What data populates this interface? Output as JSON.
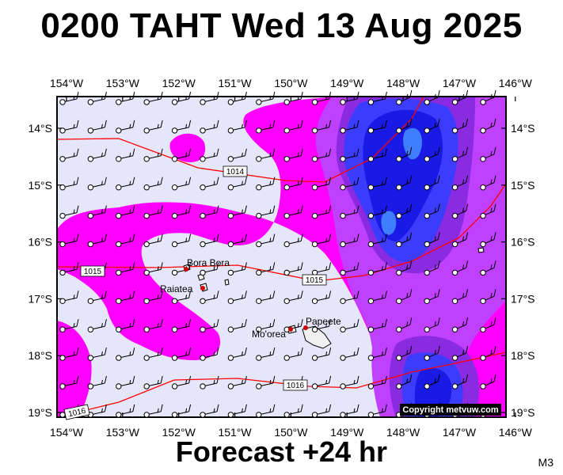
{
  "title": "0200 TAHT Wed 13 Aug 2025",
  "footer": "Forecast +24 hr",
  "code": "M3",
  "copyright": "Copyright metvuw.com",
  "colors": {
    "background": "#e6e6fa",
    "magenta": "#ff00ff",
    "violet": "#c040ff",
    "purple": "#8a2be2",
    "blue": "#3c3cff",
    "deepblue": "#0000cc",
    "isobar": "#ff0000",
    "land": "#f0f0f0"
  },
  "lon_ticks": [
    "154°W",
    "153°W",
    "152°W",
    "151°W",
    "150°W",
    "149°W",
    "148°W",
    "147°W",
    "146°W"
  ],
  "lat_ticks": [
    "14°S",
    "15°S",
    "16°S",
    "17°S",
    "18°S",
    "19°S"
  ],
  "isobars": [
    {
      "label": "1014"
    },
    {
      "label": "1015"
    },
    {
      "label": "1015"
    },
    {
      "label": "1016"
    },
    {
      "label": "1016"
    }
  ],
  "places": [
    {
      "name": "Bora Bora",
      "lon": -151.75,
      "lat": -16.5
    },
    {
      "name": "Raiatea",
      "lon": -151.45,
      "lat": -16.82
    },
    {
      "name": "Mo'orea",
      "lon": -149.85,
      "lat": -17.54
    },
    {
      "name": "Papeete",
      "lon": -149.57,
      "lat": -17.53
    }
  ]
}
